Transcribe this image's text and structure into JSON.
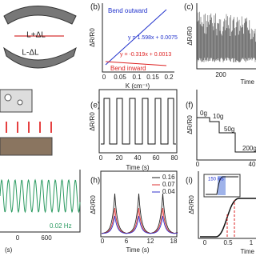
{
  "panels": {
    "a": {
      "strain_long": "L+ΔL",
      "strain_short": "L-ΔL"
    },
    "b": {
      "label": "(b)",
      "y_label": "ΔR/R0",
      "x_label": "K (cm⁻¹)",
      "xticks": [
        "0",
        "0.05",
        "0.1",
        "0.15",
        "0.2"
      ],
      "series_outward": "Bend outward",
      "eq_outward": "y = 1.598x + 0.0075",
      "series_inward": "Bend inward",
      "eq_inward": "y = -0.319x + 0.0013"
    },
    "c": {
      "label": "(c)",
      "y_label": "ΔR/R0",
      "xtick": "200",
      "x_label": "Time"
    },
    "e": {
      "label": "(e)",
      "y_label": "ΔR/R0",
      "xticks": [
        "0",
        "20",
        "40",
        "60",
        "80"
      ],
      "x_label": "Time (s)"
    },
    "f": {
      "label": "(f)",
      "y_label": "ΔR/R0",
      "steps": [
        "0g",
        "10g",
        "50g",
        "200g"
      ],
      "xticks": [
        "0",
        "40"
      ]
    },
    "g": {
      "freq": "0.02 Hz",
      "xtick": "600",
      "x_label": "(s)"
    },
    "h": {
      "label": "(h)",
      "y_label": "ΔR/R0",
      "legend": [
        "0.16",
        "0.07",
        "0.04"
      ],
      "xticks": [
        "0",
        "6",
        "12",
        "18"
      ],
      "x_label": "Time (s)"
    },
    "i": {
      "label": "(i)",
      "y_label": "ΔR/R0",
      "inset": "150 ms",
      "xticks": [
        "0",
        "0.5",
        "1"
      ],
      "x_label": "Time"
    }
  }
}
